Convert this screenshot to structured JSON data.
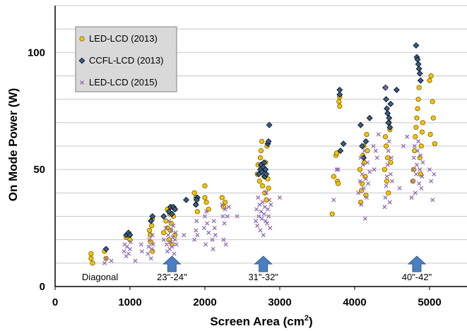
{
  "chart_data": {
    "type": "scatter",
    "xlabel": "Screen Area (cm",
    "xlabel_sup": "2",
    "xlabel_close": ")",
    "ylabel": "On Mode Power  (W)",
    "xlim": [
      0,
      5500
    ],
    "ylim": [
      0,
      120
    ],
    "x_ticks": [
      "0",
      "1000",
      "2000",
      "3000",
      "4000",
      "5000"
    ],
    "y_ticks": [
      "0",
      "50",
      "100"
    ],
    "grid": "horizontal",
    "legend_position": "top-left",
    "colors": {
      "led2013": "#f5c400",
      "ccfl2013": "#3d5f86",
      "led2015": "#8f6bb0",
      "arrow": "#4a7fc1",
      "legend_bg": "#d9d9d9"
    },
    "annotations": [
      {
        "label": "Diagonal",
        "x": 600,
        "y": 3,
        "arrow": false
      },
      {
        "label": "23\"-24\"",
        "x": 1560,
        "y": 3,
        "arrow": true
      },
      {
        "label": "31\"-32\"",
        "x": 2780,
        "y": 3,
        "arrow": true
      },
      {
        "label": "40\"-42\"",
        "x": 4830,
        "y": 3,
        "arrow": true
      }
    ],
    "series": [
      {
        "name": "LED-LCD (2013)",
        "marker": "circle",
        "points": [
          [
            480,
            14
          ],
          [
            480,
            12
          ],
          [
            500,
            10
          ],
          [
            660,
            15
          ],
          [
            680,
            12
          ],
          [
            950,
            21
          ],
          [
            980,
            22
          ],
          [
            1000,
            20
          ],
          [
            1260,
            24
          ],
          [
            1270,
            22
          ],
          [
            1280,
            19
          ],
          [
            1290,
            26
          ],
          [
            1300,
            15
          ],
          [
            1300,
            29
          ],
          [
            1450,
            23
          ],
          [
            1480,
            28
          ],
          [
            1500,
            25
          ],
          [
            1500,
            33
          ],
          [
            1520,
            20
          ],
          [
            1530,
            31
          ],
          [
            1540,
            24
          ],
          [
            1550,
            27
          ],
          [
            1560,
            34
          ],
          [
            1560,
            18
          ],
          [
            1580,
            30
          ],
          [
            1600,
            22
          ],
          [
            1600,
            33
          ],
          [
            1860,
            40
          ],
          [
            1880,
            35
          ],
          [
            1900,
            32
          ],
          [
            1880,
            38
          ],
          [
            2000,
            43
          ],
          [
            2000,
            38
          ],
          [
            2020,
            36
          ],
          [
            2050,
            33
          ],
          [
            2230,
            38
          ],
          [
            2250,
            34
          ],
          [
            2270,
            36
          ],
          [
            2700,
            48
          ],
          [
            2710,
            52
          ],
          [
            2730,
            45
          ],
          [
            2740,
            55
          ],
          [
            2750,
            58
          ],
          [
            2760,
            62
          ],
          [
            2770,
            43
          ],
          [
            2780,
            50
          ],
          [
            2790,
            47
          ],
          [
            2800,
            40
          ],
          [
            2810,
            53
          ],
          [
            2820,
            37
          ],
          [
            2830,
            60
          ],
          [
            2840,
            46
          ],
          [
            2850,
            42
          ],
          [
            3700,
            31
          ],
          [
            3720,
            47
          ],
          [
            3750,
            56
          ],
          [
            3760,
            57
          ],
          [
            3770,
            45
          ],
          [
            3780,
            44
          ],
          [
            3790,
            79
          ],
          [
            3800,
            77
          ],
          [
            3800,
            81
          ],
          [
            4070,
            50
          ],
          [
            4080,
            36
          ],
          [
            4090,
            41
          ],
          [
            4100,
            44
          ],
          [
            4110,
            56
          ],
          [
            4120,
            60
          ],
          [
            4130,
            53
          ],
          [
            4140,
            47
          ],
          [
            4150,
            39
          ],
          [
            4160,
            65
          ],
          [
            4170,
            58
          ],
          [
            4400,
            50
          ],
          [
            4410,
            64
          ],
          [
            4420,
            60
          ],
          [
            4430,
            45
          ],
          [
            4440,
            55
          ],
          [
            4450,
            40
          ],
          [
            4460,
            70
          ],
          [
            4470,
            67
          ],
          [
            4480,
            53
          ],
          [
            4780,
            45
          ],
          [
            4790,
            50
          ],
          [
            4800,
            58
          ],
          [
            4810,
            64
          ],
          [
            4820,
            68
          ],
          [
            4830,
            72
          ],
          [
            4840,
            76
          ],
          [
            4850,
            80
          ],
          [
            4860,
            85
          ],
          [
            4870,
            55
          ],
          [
            4880,
            48
          ],
          [
            4890,
            60
          ],
          [
            4900,
            66
          ],
          [
            4910,
            70
          ],
          [
            5000,
            88
          ],
          [
            5020,
            90
          ],
          [
            5050,
            72
          ],
          [
            5070,
            61
          ],
          [
            5040,
            79
          ],
          [
            5010,
            65
          ]
        ]
      },
      {
        "name": "CCFL-LCD (2013)",
        "marker": "diamond",
        "points": [
          [
            680,
            16
          ],
          [
            950,
            22
          ],
          [
            980,
            23
          ],
          [
            1000,
            22
          ],
          [
            1280,
            28
          ],
          [
            1300,
            30
          ],
          [
            1450,
            30
          ],
          [
            1520,
            32
          ],
          [
            1540,
            34
          ],
          [
            1560,
            31
          ],
          [
            1580,
            34
          ],
          [
            1600,
            33
          ],
          [
            1750,
            37
          ],
          [
            1880,
            35
          ],
          [
            1900,
            38
          ],
          [
            1890,
            37
          ],
          [
            2720,
            48
          ],
          [
            2740,
            50
          ],
          [
            2750,
            52
          ],
          [
            2760,
            49
          ],
          [
            2780,
            51
          ],
          [
            2790,
            53
          ],
          [
            2800,
            47
          ],
          [
            2810,
            50
          ],
          [
            2820,
            48
          ],
          [
            2840,
            61
          ],
          [
            2850,
            62
          ],
          [
            2860,
            69
          ],
          [
            3800,
            82
          ],
          [
            3800,
            84
          ],
          [
            3810,
            58
          ],
          [
            3850,
            61
          ],
          [
            4080,
            69
          ],
          [
            4100,
            60
          ],
          [
            4120,
            55
          ],
          [
            4150,
            62
          ],
          [
            4200,
            72
          ],
          [
            4410,
            85
          ],
          [
            4420,
            80
          ],
          [
            4430,
            76
          ],
          [
            4440,
            74
          ],
          [
            4450,
            70
          ],
          [
            4460,
            72
          ],
          [
            4470,
            68
          ],
          [
            4480,
            78
          ],
          [
            4560,
            84
          ],
          [
            4820,
            103
          ],
          [
            4830,
            98
          ],
          [
            4840,
            97
          ],
          [
            4850,
            95
          ],
          [
            4860,
            93
          ],
          [
            4870,
            91
          ],
          [
            4880,
            88
          ]
        ]
      },
      {
        "name": "LED-LCD (2015)",
        "marker": "x",
        "points": [
          [
            660,
            10
          ],
          [
            680,
            12
          ],
          [
            750,
            11
          ],
          [
            920,
            15
          ],
          [
            930,
            18
          ],
          [
            950,
            13
          ],
          [
            960,
            17
          ],
          [
            980,
            14
          ],
          [
            1000,
            16
          ],
          [
            1010,
            19
          ],
          [
            1070,
            11
          ],
          [
            1150,
            18
          ],
          [
            1160,
            15
          ],
          [
            1240,
            14
          ],
          [
            1250,
            17
          ],
          [
            1260,
            20
          ],
          [
            1280,
            12
          ],
          [
            1290,
            16
          ],
          [
            1300,
            22
          ],
          [
            1310,
            18
          ],
          [
            1450,
            20
          ],
          [
            1480,
            25
          ],
          [
            1490,
            18
          ],
          [
            1500,
            15
          ],
          [
            1510,
            22
          ],
          [
            1520,
            28
          ],
          [
            1530,
            16
          ],
          [
            1540,
            19
          ],
          [
            1550,
            24
          ],
          [
            1560,
            17
          ],
          [
            1570,
            21
          ],
          [
            1580,
            26
          ],
          [
            1590,
            14
          ],
          [
            1600,
            20
          ],
          [
            1610,
            23
          ],
          [
            1620,
            18
          ],
          [
            1720,
            22
          ],
          [
            1860,
            20
          ],
          [
            1880,
            24
          ],
          [
            1890,
            28
          ],
          [
            1900,
            22
          ],
          [
            1990,
            25
          ],
          [
            2000,
            30
          ],
          [
            2010,
            18
          ],
          [
            2020,
            32
          ],
          [
            2030,
            27
          ],
          [
            2050,
            23
          ],
          [
            2100,
            20
          ],
          [
            2110,
            16
          ],
          [
            2120,
            28
          ],
          [
            2130,
            25
          ],
          [
            2140,
            22
          ],
          [
            2230,
            35
          ],
          [
            2240,
            30
          ],
          [
            2250,
            20
          ],
          [
            2260,
            27
          ],
          [
            2270,
            33
          ],
          [
            2280,
            18
          ],
          [
            2300,
            30
          ],
          [
            2320,
            34
          ],
          [
            2430,
            30
          ],
          [
            2680,
            28
          ],
          [
            2690,
            33
          ],
          [
            2700,
            26
          ],
          [
            2710,
            38
          ],
          [
            2720,
            30
          ],
          [
            2730,
            35
          ],
          [
            2740,
            24
          ],
          [
            2750,
            32
          ],
          [
            2760,
            29
          ],
          [
            2770,
            36
          ],
          [
            2780,
            22
          ],
          [
            2790,
            31
          ],
          [
            2800,
            34
          ],
          [
            2810,
            28
          ],
          [
            2820,
            40
          ],
          [
            2830,
            27
          ],
          [
            2840,
            33
          ],
          [
            2850,
            30
          ],
          [
            2860,
            37
          ],
          [
            2870,
            25
          ],
          [
            2880,
            35
          ],
          [
            3000,
            38
          ],
          [
            3720,
            37
          ],
          [
            3760,
            50
          ],
          [
            3780,
            50
          ],
          [
            4050,
            40
          ],
          [
            4070,
            45
          ],
          [
            4080,
            55
          ],
          [
            4090,
            35
          ],
          [
            4100,
            48
          ],
          [
            4110,
            52
          ],
          [
            4120,
            42
          ],
          [
            4130,
            58
          ],
          [
            4140,
            29
          ],
          [
            4150,
            46
          ],
          [
            4160,
            38
          ],
          [
            4170,
            53
          ],
          [
            4180,
            44
          ],
          [
            4200,
            49
          ],
          [
            4250,
            60
          ],
          [
            4260,
            50
          ],
          [
            4280,
            58
          ],
          [
            4300,
            55
          ],
          [
            4320,
            65
          ],
          [
            4400,
            34
          ],
          [
            4410,
            38
          ],
          [
            4420,
            43
          ],
          [
            4430,
            47
          ],
          [
            4440,
            52
          ],
          [
            4450,
            58
          ],
          [
            4460,
            62
          ],
          [
            4470,
            36
          ],
          [
            4480,
            48
          ],
          [
            4490,
            55
          ],
          [
            4500,
            45
          ],
          [
            4420,
            85
          ],
          [
            4600,
            42
          ],
          [
            4760,
            38
          ],
          [
            4770,
            45
          ],
          [
            4780,
            50
          ],
          [
            4790,
            55
          ],
          [
            4800,
            60
          ],
          [
            4810,
            40
          ],
          [
            4820,
            48
          ],
          [
            4830,
            52
          ],
          [
            4840,
            58
          ],
          [
            4850,
            62
          ],
          [
            4860,
            44
          ],
          [
            4870,
            50
          ],
          [
            4880,
            56
          ],
          [
            4890,
            42
          ],
          [
            4900,
            47
          ],
          [
            4910,
            53
          ],
          [
            4700,
            64
          ],
          [
            4650,
            60
          ],
          [
            5000,
            50
          ],
          [
            5020,
            45
          ],
          [
            5040,
            37
          ],
          [
            5060,
            48
          ]
        ]
      }
    ]
  }
}
